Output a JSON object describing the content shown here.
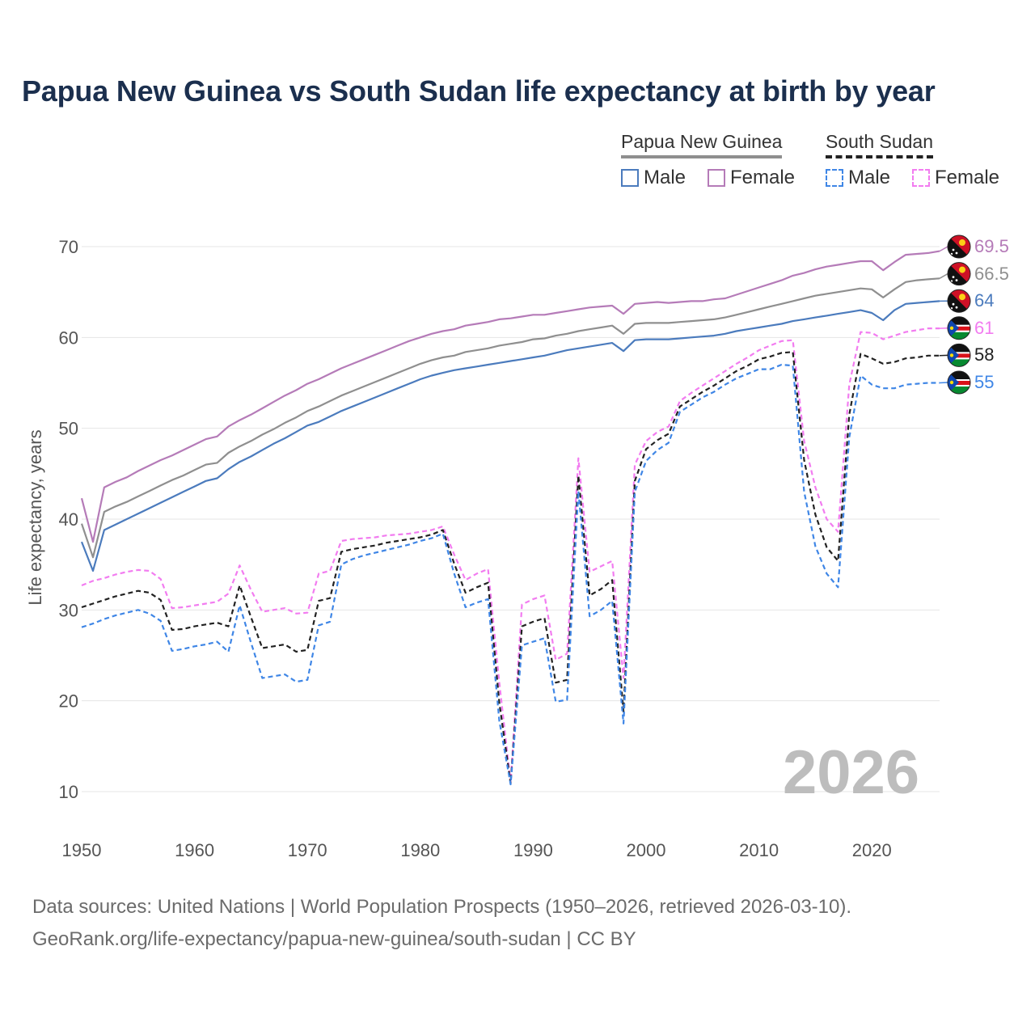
{
  "title": "Papua New Guinea vs South Sudan life expectancy at birth by year",
  "legend": {
    "png_header": "Papua New Guinea",
    "ss_header": "South Sudan",
    "male": "Male",
    "female": "Female"
  },
  "year_label": "2026",
  "footer": {
    "line1": "Data sources: United Nations | World Population Prospects (1950–2026, retrieved 2026-03-10).",
    "line2": "GeoRank.org/life-expectancy/papua-new-guinea/south-sudan | CC BY"
  },
  "end_labels": [
    {
      "text": "69.5",
      "color": "#b57bb8",
      "flag": "png"
    },
    {
      "text": "66.5",
      "color": "#8f8f8f",
      "flag": "png"
    },
    {
      "text": "64",
      "color": "#4b7bbd",
      "flag": "png"
    },
    {
      "text": "61",
      "color": "#f27cf0",
      "flag": "ss"
    },
    {
      "text": "58",
      "color": "#222222",
      "flag": "ss"
    },
    {
      "text": "55",
      "color": "#3f86e6",
      "flag": "ss"
    }
  ],
  "chart_data": {
    "type": "line",
    "title": "Papua New Guinea vs South Sudan life expectancy at birth by year",
    "xlabel": "",
    "ylabel": "Life expectancy, years",
    "xlim": [
      1950,
      2026
    ],
    "ylim": [
      10,
      70
    ],
    "x_ticks": [
      "1950",
      "1960",
      "1970",
      "1980",
      "1990",
      "2000",
      "2010",
      "2020"
    ],
    "y_ticks": [
      "10",
      "20",
      "30",
      "40",
      "50",
      "60",
      "70"
    ],
    "x": [
      1950,
      1951,
      1952,
      1953,
      1954,
      1955,
      1956,
      1957,
      1958,
      1959,
      1960,
      1961,
      1962,
      1963,
      1964,
      1965,
      1966,
      1967,
      1968,
      1969,
      1970,
      1971,
      1972,
      1973,
      1974,
      1975,
      1976,
      1977,
      1978,
      1979,
      1980,
      1981,
      1982,
      1983,
      1984,
      1985,
      1986,
      1987,
      1988,
      1989,
      1990,
      1991,
      1992,
      1993,
      1994,
      1995,
      1996,
      1997,
      1998,
      1999,
      2000,
      2001,
      2002,
      2003,
      2004,
      2005,
      2006,
      2007,
      2008,
      2009,
      2010,
      2011,
      2012,
      2013,
      2014,
      2015,
      2016,
      2017,
      2018,
      2019,
      2020,
      2021,
      2022,
      2023,
      2024,
      2025,
      2026
    ],
    "series": [
      {
        "name": "Papua New Guinea Female",
        "color": "#b57bb8",
        "style": "solid",
        "values": [
          42.3,
          37.5,
          43.5,
          44.1,
          44.6,
          45.3,
          45.9,
          46.5,
          47.0,
          47.6,
          48.2,
          48.8,
          49.1,
          50.2,
          50.9,
          51.5,
          52.2,
          52.9,
          53.6,
          54.2,
          54.9,
          55.4,
          56.0,
          56.6,
          57.1,
          57.6,
          58.1,
          58.6,
          59.1,
          59.6,
          60.0,
          60.4,
          60.7,
          60.9,
          61.3,
          61.5,
          61.7,
          62.0,
          62.1,
          62.3,
          62.5,
          62.5,
          62.7,
          62.9,
          63.1,
          63.3,
          63.4,
          63.5,
          62.6,
          63.7,
          63.8,
          63.9,
          63.8,
          63.9,
          64.0,
          64.0,
          64.2,
          64.3,
          64.7,
          65.1,
          65.5,
          65.9,
          66.3,
          66.8,
          67.1,
          67.5,
          67.8,
          68.0,
          68.2,
          68.4,
          68.4,
          67.4,
          68.3,
          69.1,
          69.2,
          69.3,
          69.5
        ]
      },
      {
        "name": "Papua New Guinea Total",
        "color": "#8f8f8f",
        "style": "solid",
        "values": [
          39.5,
          35.8,
          40.8,
          41.4,
          41.9,
          42.5,
          43.1,
          43.7,
          44.3,
          44.8,
          45.4,
          46.0,
          46.2,
          47.3,
          48.0,
          48.6,
          49.3,
          49.9,
          50.6,
          51.2,
          51.9,
          52.4,
          53.0,
          53.6,
          54.1,
          54.6,
          55.1,
          55.6,
          56.1,
          56.6,
          57.1,
          57.5,
          57.8,
          58.0,
          58.4,
          58.6,
          58.8,
          59.1,
          59.3,
          59.5,
          59.8,
          59.9,
          60.2,
          60.4,
          60.7,
          60.9,
          61.1,
          61.3,
          60.4,
          61.5,
          61.6,
          61.6,
          61.6,
          61.7,
          61.8,
          61.9,
          62.0,
          62.2,
          62.5,
          62.8,
          63.1,
          63.4,
          63.7,
          64.0,
          64.3,
          64.6,
          64.8,
          65.0,
          65.2,
          65.4,
          65.3,
          64.4,
          65.3,
          66.1,
          66.3,
          66.4,
          66.5
        ]
      },
      {
        "name": "Papua New Guinea Male",
        "color": "#4b7bbd",
        "style": "solid",
        "values": [
          37.5,
          34.3,
          38.8,
          39.4,
          40.0,
          40.6,
          41.2,
          41.8,
          42.4,
          43.0,
          43.6,
          44.2,
          44.5,
          45.5,
          46.3,
          46.9,
          47.6,
          48.3,
          48.9,
          49.6,
          50.3,
          50.7,
          51.3,
          51.9,
          52.4,
          52.9,
          53.4,
          53.9,
          54.4,
          54.9,
          55.4,
          55.8,
          56.1,
          56.4,
          56.6,
          56.8,
          57.0,
          57.2,
          57.4,
          57.6,
          57.8,
          58.0,
          58.3,
          58.6,
          58.8,
          59.0,
          59.2,
          59.4,
          58.5,
          59.7,
          59.8,
          59.8,
          59.8,
          59.9,
          60.0,
          60.1,
          60.2,
          60.4,
          60.7,
          60.9,
          61.1,
          61.3,
          61.5,
          61.8,
          62.0,
          62.2,
          62.4,
          62.6,
          62.8,
          63.0,
          62.7,
          61.9,
          63.0,
          63.7,
          63.8,
          63.9,
          64.0
        ]
      },
      {
        "name": "South Sudan Female",
        "color": "#f27cf0",
        "style": "dashed",
        "values": [
          32.7,
          33.2,
          33.5,
          33.9,
          34.2,
          34.4,
          34.3,
          33.4,
          30.2,
          30.3,
          30.5,
          30.7,
          30.9,
          31.8,
          34.9,
          32.2,
          29.8,
          30.0,
          30.2,
          29.6,
          29.7,
          34.0,
          34.3,
          37.6,
          37.8,
          37.9,
          38.0,
          38.2,
          38.3,
          38.4,
          38.6,
          38.8,
          39.2,
          36.1,
          33.3,
          34.0,
          34.5,
          22.0,
          11.0,
          30.6,
          31.2,
          31.6,
          24.5,
          25.2,
          46.7,
          34.2,
          34.8,
          35.4,
          22.5,
          46.0,
          48.6,
          49.6,
          50.2,
          53.0,
          53.9,
          54.7,
          55.5,
          56.3,
          57.1,
          57.8,
          58.6,
          59.1,
          59.6,
          59.7,
          48.6,
          43.5,
          40.0,
          38.6,
          54.8,
          60.6,
          60.5,
          59.8,
          60.2,
          60.6,
          60.8,
          61.0,
          61.0
        ]
      },
      {
        "name": "South Sudan Total",
        "color": "#222222",
        "style": "dashed",
        "values": [
          30.3,
          30.7,
          31.1,
          31.5,
          31.8,
          32.1,
          31.9,
          31.1,
          27.8,
          27.9,
          28.2,
          28.4,
          28.6,
          28.2,
          32.7,
          29.2,
          25.8,
          26.0,
          26.2,
          25.4,
          25.6,
          31.0,
          31.3,
          36.4,
          36.7,
          36.9,
          37.1,
          37.4,
          37.6,
          37.8,
          38.0,
          38.3,
          38.8,
          35.1,
          31.9,
          32.5,
          33.0,
          19.8,
          10.9,
          28.2,
          28.7,
          29.1,
          22.0,
          22.3,
          44.8,
          31.6,
          32.3,
          33.3,
          18.8,
          44.2,
          47.7,
          48.7,
          49.4,
          52.4,
          53.2,
          54.0,
          54.7,
          55.5,
          56.3,
          56.9,
          57.6,
          57.9,
          58.3,
          58.4,
          46.5,
          40.5,
          36.9,
          35.4,
          51.5,
          58.2,
          57.7,
          57.1,
          57.3,
          57.7,
          57.8,
          58.0,
          58.0
        ]
      },
      {
        "name": "South Sudan Male",
        "color": "#3f86e6",
        "style": "dashed",
        "values": [
          28.1,
          28.5,
          29.0,
          29.4,
          29.7,
          30.0,
          29.6,
          28.8,
          25.5,
          25.7,
          26.0,
          26.2,
          26.5,
          25.4,
          30.5,
          26.4,
          22.5,
          22.7,
          22.9,
          22.1,
          22.3,
          28.3,
          28.7,
          35.0,
          35.6,
          36.0,
          36.3,
          36.6,
          36.9,
          37.2,
          37.6,
          37.9,
          38.4,
          34.0,
          30.3,
          30.8,
          31.2,
          17.8,
          10.8,
          26.1,
          26.5,
          26.9,
          19.9,
          20.1,
          43.1,
          29.3,
          30.0,
          31.0,
          17.5,
          43.0,
          46.4,
          47.6,
          48.4,
          51.8,
          52.6,
          53.4,
          54.0,
          54.8,
          55.5,
          56.0,
          56.5,
          56.5,
          57.0,
          56.9,
          43.0,
          37.0,
          34.0,
          32.5,
          49.0,
          55.8,
          54.8,
          54.4,
          54.4,
          54.8,
          54.9,
          55.0,
          55.0
        ]
      }
    ]
  }
}
